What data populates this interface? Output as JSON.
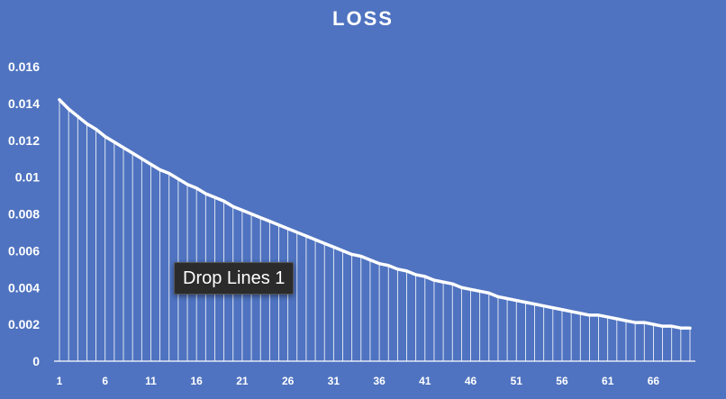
{
  "colors": {
    "background": "#4f73c0",
    "line": "#ffffff",
    "drop_lines": "#ffffff",
    "tooltip_bg": "#2b2b2b",
    "text": "#ffffff"
  },
  "tooltip": {
    "text": "Drop Lines 1"
  },
  "chart_data": {
    "type": "line",
    "title": "LOSS",
    "xlabel": "",
    "ylabel": "",
    "x": [
      1,
      2,
      3,
      4,
      5,
      6,
      7,
      8,
      9,
      10,
      11,
      12,
      13,
      14,
      15,
      16,
      17,
      18,
      19,
      20,
      21,
      22,
      23,
      24,
      25,
      26,
      27,
      28,
      29,
      30,
      31,
      32,
      33,
      34,
      35,
      36,
      37,
      38,
      39,
      40,
      41,
      42,
      43,
      44,
      45,
      46,
      47,
      48,
      49,
      50,
      51,
      52,
      53,
      54,
      55,
      56,
      57,
      58,
      59,
      60,
      61,
      62,
      63,
      64,
      65,
      66,
      67,
      68,
      69,
      70
    ],
    "x_tick_labels": [
      "1",
      "6",
      "11",
      "16",
      "21",
      "26",
      "31",
      "36",
      "41",
      "46",
      "51",
      "56",
      "61",
      "66"
    ],
    "y_tick_labels": [
      "0",
      "0.002",
      "0.004",
      "0.006",
      "0.008",
      "0.01",
      "0.012",
      "0.014",
      "0.016"
    ],
    "ylim": [
      0,
      0.016
    ],
    "grid": false,
    "drop_lines": true,
    "series": [
      {
        "values": [
          0.0142,
          0.0137,
          0.0133,
          0.0129,
          0.0126,
          0.0122,
          0.0119,
          0.0116,
          0.0113,
          0.011,
          0.0107,
          0.0104,
          0.0102,
          0.0099,
          0.0096,
          0.0094,
          0.0091,
          0.0089,
          0.0087,
          0.0084,
          0.0082,
          0.008,
          0.0078,
          0.0076,
          0.0074,
          0.0072,
          0.007,
          0.0068,
          0.0066,
          0.0064,
          0.0062,
          0.006,
          0.0058,
          0.0057,
          0.0055,
          0.0053,
          0.0052,
          0.005,
          0.0049,
          0.0047,
          0.0046,
          0.0044,
          0.0043,
          0.0042,
          0.004,
          0.0039,
          0.0038,
          0.0037,
          0.0035,
          0.0034,
          0.0033,
          0.0032,
          0.0031,
          0.003,
          0.0029,
          0.0028,
          0.0027,
          0.0026,
          0.0025,
          0.0025,
          0.0024,
          0.0023,
          0.0022,
          0.0021,
          0.0021,
          0.002,
          0.0019,
          0.0019,
          0.0018,
          0.0018
        ]
      }
    ]
  }
}
